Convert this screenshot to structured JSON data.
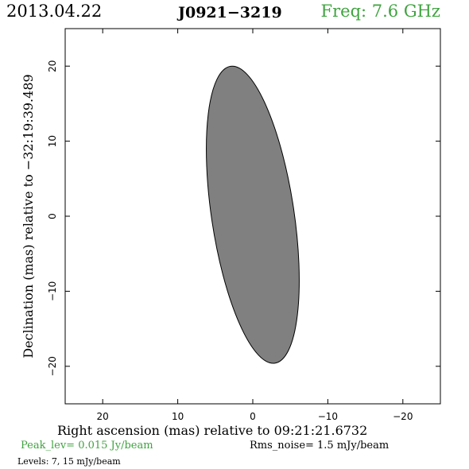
{
  "header": {
    "date": "2013.04.22",
    "source": "J0921−3219",
    "frequency": "Freq: 7.6 GHz",
    "frequency_color": "#3fa33f"
  },
  "footer": {
    "peak": "Peak_lev=  0.015 Jy/beam",
    "rms": "Rms_noise=  1.5 mJy/beam",
    "levels": "Levels:   7,  15 mJy/beam"
  },
  "chart_data": {
    "type": "contour",
    "xlabel": "Right ascension (mas) relative to 09:21:21.6732",
    "ylabel": "Declination (mas) relative to −32:19:39.489",
    "xlim": [
      25,
      -25
    ],
    "ylim": [
      -25,
      25
    ],
    "xticks": [
      20,
      10,
      0,
      -10,
      -20
    ],
    "yticks": [
      20,
      10,
      0,
      -10,
      -20
    ],
    "xtick_labels": [
      "20",
      "10",
      "0",
      "−10",
      "−20"
    ],
    "ytick_labels": [
      "20",
      "10",
      "0",
      "−10",
      "−20"
    ],
    "beam": {
      "center_x": 0.0,
      "center_y": 0.2,
      "major": 40.0,
      "minor": 11.0,
      "position_angle_deg": -8.5,
      "fill": "#808080"
    }
  }
}
